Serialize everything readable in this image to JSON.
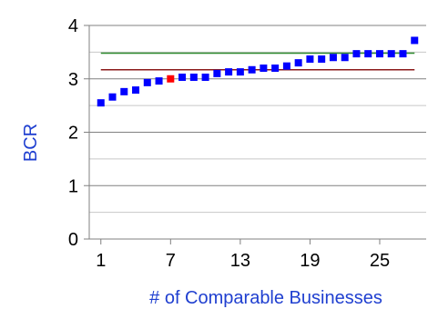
{
  "chart_data": {
    "type": "scatter",
    "title": "",
    "xlabel": "# of Comparable Businesses",
    "ylabel": "BCR",
    "xlim": [
      0,
      29
    ],
    "ylim": [
      0,
      4
    ],
    "x_ticks": [
      1,
      7,
      13,
      19,
      25
    ],
    "y_ticks": [
      0,
      1,
      2,
      3,
      4
    ],
    "grid": "horizontal",
    "legend": "none",
    "colors": {
      "points": "#0000ff",
      "highlight": "#ff0000",
      "upper_line": "#2e8b2e",
      "lower_line": "#8b1a1a",
      "axis_title": "#1f3fd0",
      "grid": "#808080"
    },
    "series": [
      {
        "x": [
          1,
          2,
          3,
          4,
          5,
          6,
          7,
          8,
          9,
          10,
          11,
          12,
          13,
          14,
          15,
          16,
          17,
          18,
          19,
          20,
          21,
          22,
          23,
          24,
          25,
          26,
          27,
          28
        ],
        "values": [
          2.55,
          2.66,
          2.76,
          2.79,
          2.93,
          2.96,
          3.0,
          3.03,
          3.03,
          3.03,
          3.1,
          3.13,
          3.13,
          3.17,
          3.2,
          3.2,
          3.24,
          3.3,
          3.37,
          3.37,
          3.4,
          3.4,
          3.47,
          3.47,
          3.47,
          3.47,
          3.47,
          3.72
        ]
      }
    ],
    "highlight_point": {
      "x": 7,
      "value": 3.0
    },
    "reference_lines": [
      {
        "value": 3.48,
        "color": "#2e8b2e"
      },
      {
        "value": 3.17,
        "color": "#8b1a1a"
      }
    ]
  }
}
